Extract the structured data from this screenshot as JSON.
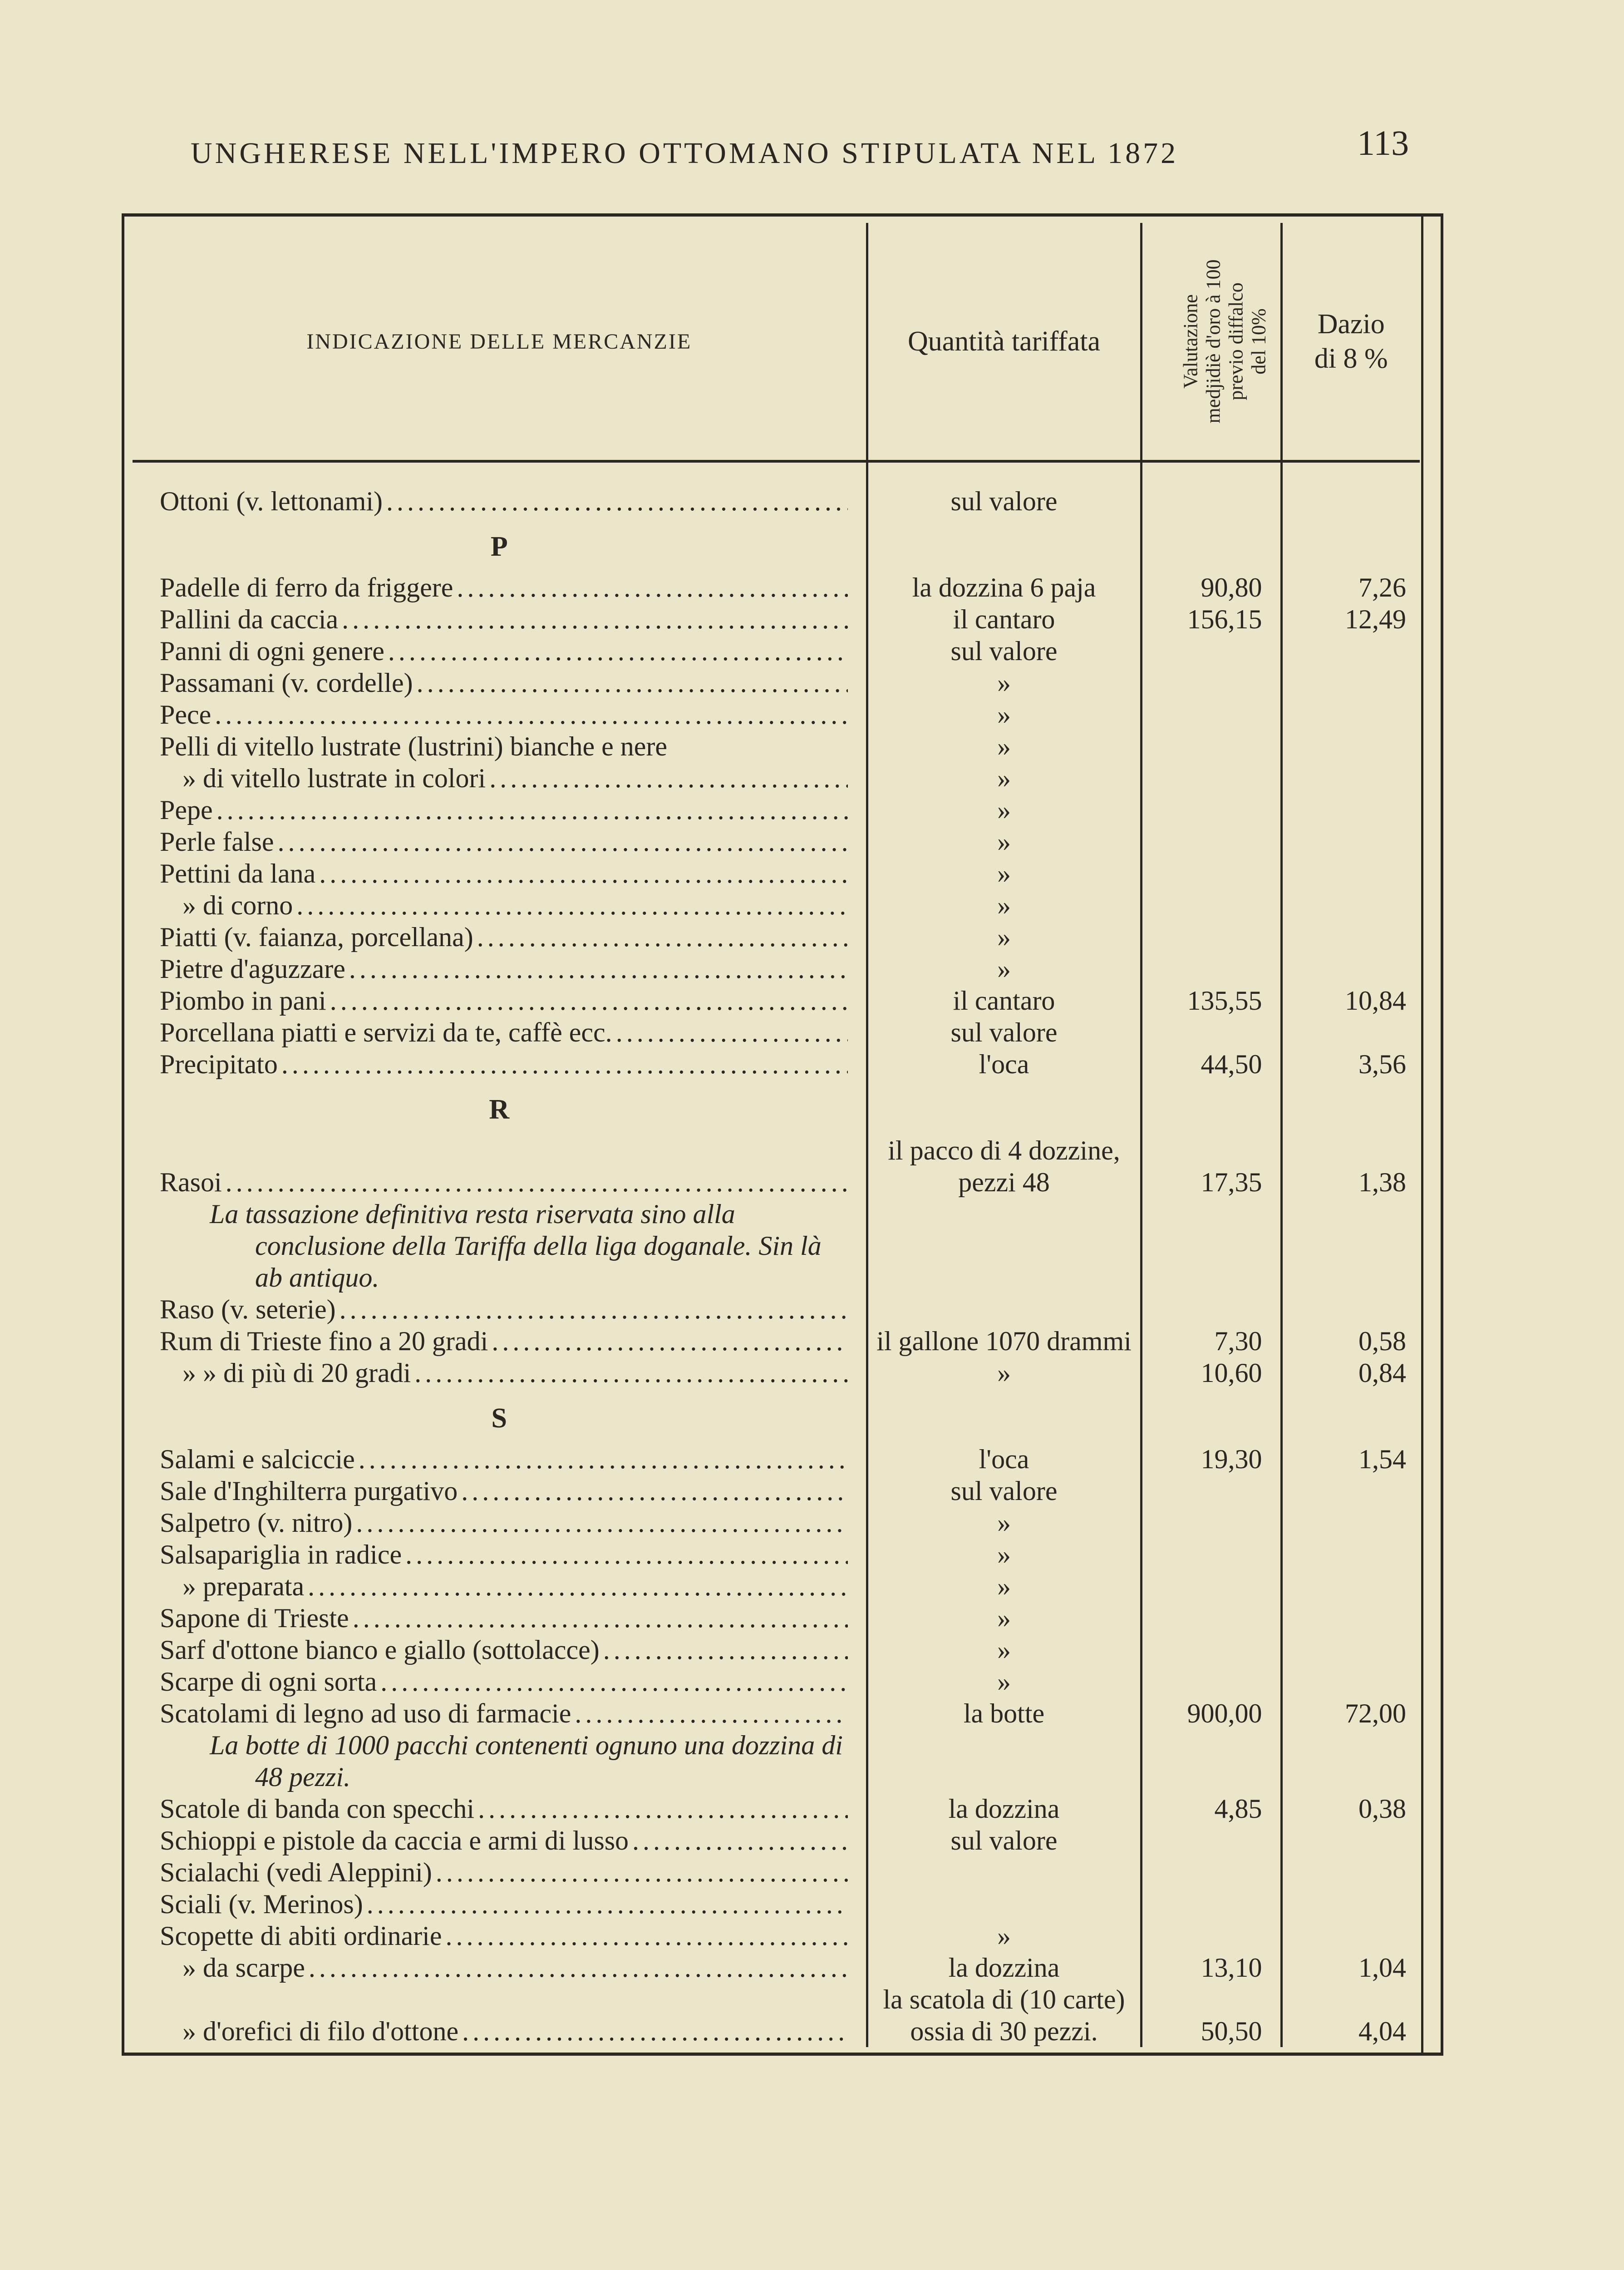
{
  "running_head": "UNGHERESE NELL'IMPERO OTTOMANO STIPULATA NEL 1872",
  "page_number": "113",
  "table": {
    "headers": {
      "description": "INDICAZIONE DELLE MERCANZIE",
      "quantity": "Quantità tariffata",
      "valuation": [
        "Valutazione",
        "medjidiè d'oro à 100",
        "previo diffalco",
        "del 10%"
      ],
      "duty": [
        "Dazio",
        "di 8 %"
      ]
    },
    "rows": [
      {
        "type": "item",
        "desc": "Ottoni (v. lettonami)",
        "qty": "sul valore",
        "val": "",
        "duty": ""
      },
      {
        "type": "heading",
        "desc": "P"
      },
      {
        "type": "item",
        "desc": "Padelle di ferro da friggere",
        "qty": "la dozzina 6 paja",
        "val": "90,80",
        "duty": "7,26"
      },
      {
        "type": "item",
        "desc": "Pallini da caccia",
        "qty": "il cantaro",
        "val": "156,15",
        "duty": "12,49"
      },
      {
        "type": "item",
        "desc": "Panni di ogni genere",
        "qty": "sul valore",
        "val": "",
        "duty": ""
      },
      {
        "type": "item",
        "desc": "Passamani (v. cordelle)",
        "qty": "»",
        "val": "",
        "duty": ""
      },
      {
        "type": "item",
        "desc": "Pece",
        "qty": "»",
        "val": "",
        "duty": ""
      },
      {
        "type": "item",
        "desc": "Pelli di vitello lustrate (lustrini) bianche e nere",
        "qty": "»",
        "val": "",
        "duty": "",
        "nodots": true
      },
      {
        "type": "item",
        "desc": "»  di vitello lustrate in colori",
        "qty": "»",
        "val": "",
        "duty": "",
        "indent": true
      },
      {
        "type": "item",
        "desc": "Pepe",
        "qty": "»",
        "val": "",
        "duty": ""
      },
      {
        "type": "item",
        "desc": "Perle false",
        "qty": "»",
        "val": "",
        "duty": ""
      },
      {
        "type": "item",
        "desc": "Pettini da lana",
        "qty": "»",
        "val": "",
        "duty": ""
      },
      {
        "type": "item",
        "desc": "»      di corno",
        "qty": "»",
        "val": "",
        "duty": "",
        "indent": true
      },
      {
        "type": "item",
        "desc": "Piatti (v. faianza, porcellana)",
        "qty": "»",
        "val": "",
        "duty": ""
      },
      {
        "type": "item",
        "desc": "Pietre d'aguzzare",
        "qty": "»",
        "val": "",
        "duty": ""
      },
      {
        "type": "item",
        "desc": "Piombo in pani",
        "qty": "il cantaro",
        "val": "135,55",
        "duty": "10,84"
      },
      {
        "type": "item",
        "desc": "Porcellana piatti e servizi da te, caffè ecc.",
        "qty": "sul valore",
        "val": "",
        "duty": ""
      },
      {
        "type": "item",
        "desc": "Precipitato",
        "qty": "l'oca",
        "val": "44,50",
        "duty": "3,56"
      },
      {
        "type": "heading",
        "desc": "R"
      },
      {
        "type": "item",
        "desc": "Rasoi",
        "qty": "il pacco di 4 dozzine, pezzi 48",
        "val": "17,35",
        "duty": "1,38"
      },
      {
        "type": "note",
        "desc": "La tassazione definitiva resta riservata sino alla conclusione della Tariffa della liga doganale. Sin là ab antiquo."
      },
      {
        "type": "item",
        "desc": "Raso (v. seterie)",
        "qty": "",
        "val": "",
        "duty": ""
      },
      {
        "type": "item",
        "desc": "Rum di Trieste fino a 20 gradi",
        "qty": "il gallone 1070 drammi",
        "val": "7,30",
        "duty": "0,58"
      },
      {
        "type": "item",
        "desc": "»      »   di più di 20 gradi",
        "qty": "»",
        "val": "10,60",
        "duty": "0,84",
        "indent": true
      },
      {
        "type": "heading",
        "desc": "S"
      },
      {
        "type": "item",
        "desc": "Salami e salciccie",
        "qty": "l'oca",
        "val": "19,30",
        "duty": "1,54"
      },
      {
        "type": "item",
        "desc": "Sale d'Inghilterra purgativo",
        "qty": "sul valore",
        "val": "",
        "duty": ""
      },
      {
        "type": "item",
        "desc": "Salpetro (v. nitro)",
        "qty": "»",
        "val": "",
        "duty": ""
      },
      {
        "type": "item",
        "desc": "Salsapariglia in radice",
        "qty": "»",
        "val": "",
        "duty": ""
      },
      {
        "type": "item",
        "desc": "»        preparata",
        "qty": "»",
        "val": "",
        "duty": "",
        "indent": true
      },
      {
        "type": "item",
        "desc": "Sapone di Trieste",
        "qty": "»",
        "val": "",
        "duty": ""
      },
      {
        "type": "item",
        "desc": "Sarf d'ottone bianco e giallo (sottolacce)",
        "qty": "»",
        "val": "",
        "duty": ""
      },
      {
        "type": "item",
        "desc": "Scarpe di ogni sorta",
        "qty": "»",
        "val": "",
        "duty": ""
      },
      {
        "type": "item",
        "desc": "Scatolami di legno ad uso di farmacie",
        "qty": "la botte",
        "val": "900,00",
        "duty": "72,00"
      },
      {
        "type": "note",
        "desc": "La botte di 1000 pacchi contenenti ognuno una dozzina di 48 pezzi."
      },
      {
        "type": "item",
        "desc": "Scatole di banda con specchi",
        "qty": "la dozzina",
        "val": "4,85",
        "duty": "0,38"
      },
      {
        "type": "item",
        "desc": "Schioppi e pistole da caccia e armi di lusso",
        "qty": "sul valore",
        "val": "",
        "duty": ""
      },
      {
        "type": "item",
        "desc": "Scialachi (vedi Aleppini)",
        "qty": "",
        "val": "",
        "duty": ""
      },
      {
        "type": "item",
        "desc": "Sciali (v. Merinos)",
        "qty": "",
        "val": "",
        "duty": ""
      },
      {
        "type": "item",
        "desc": "Scopette di abiti ordinarie",
        "qty": "»",
        "val": "",
        "duty": ""
      },
      {
        "type": "item",
        "desc": "»     da scarpe",
        "qty": "la dozzina",
        "val": "13,10",
        "duty": "1,04",
        "indent": true
      },
      {
        "type": "item",
        "desc": "»     d'orefici di filo d'ottone",
        "qty": "la scatola di (10 carte) ossia di 30 pezzi.",
        "val": "50,50",
        "duty": "4,04",
        "indent": true
      }
    ]
  }
}
